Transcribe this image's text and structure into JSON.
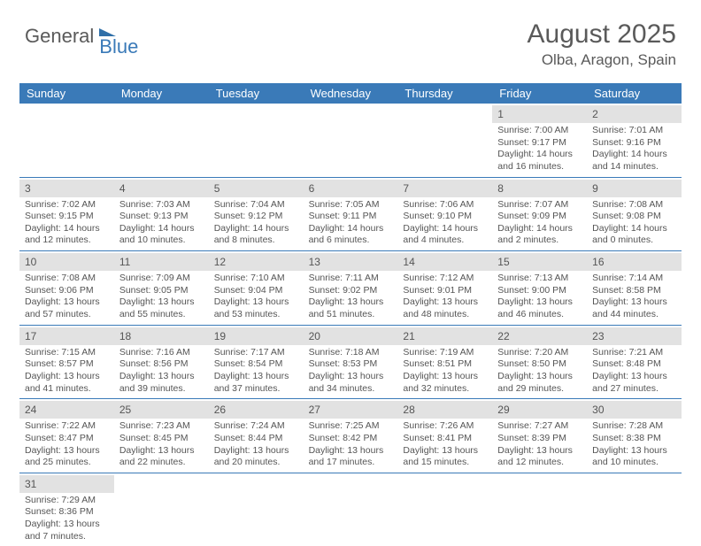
{
  "logo": {
    "part1": "General",
    "part2": "Blue"
  },
  "title": "August 2025",
  "location": "Olba, Aragon, Spain",
  "colors": {
    "header_bg": "#3a7ab8",
    "daynum_bg": "#e2e2e2",
    "text": "#555555",
    "week_border": "#3a7ab8"
  },
  "dayNames": [
    "Sunday",
    "Monday",
    "Tuesday",
    "Wednesday",
    "Thursday",
    "Friday",
    "Saturday"
  ],
  "weeks": [
    [
      null,
      null,
      null,
      null,
      null,
      {
        "n": "1",
        "sr": "7:00 AM",
        "ss": "9:17 PM",
        "dl": "14 hours and 16 minutes."
      },
      {
        "n": "2",
        "sr": "7:01 AM",
        "ss": "9:16 PM",
        "dl": "14 hours and 14 minutes."
      }
    ],
    [
      {
        "n": "3",
        "sr": "7:02 AM",
        "ss": "9:15 PM",
        "dl": "14 hours and 12 minutes."
      },
      {
        "n": "4",
        "sr": "7:03 AM",
        "ss": "9:13 PM",
        "dl": "14 hours and 10 minutes."
      },
      {
        "n": "5",
        "sr": "7:04 AM",
        "ss": "9:12 PM",
        "dl": "14 hours and 8 minutes."
      },
      {
        "n": "6",
        "sr": "7:05 AM",
        "ss": "9:11 PM",
        "dl": "14 hours and 6 minutes."
      },
      {
        "n": "7",
        "sr": "7:06 AM",
        "ss": "9:10 PM",
        "dl": "14 hours and 4 minutes."
      },
      {
        "n": "8",
        "sr": "7:07 AM",
        "ss": "9:09 PM",
        "dl": "14 hours and 2 minutes."
      },
      {
        "n": "9",
        "sr": "7:08 AM",
        "ss": "9:08 PM",
        "dl": "14 hours and 0 minutes."
      }
    ],
    [
      {
        "n": "10",
        "sr": "7:08 AM",
        "ss": "9:06 PM",
        "dl": "13 hours and 57 minutes."
      },
      {
        "n": "11",
        "sr": "7:09 AM",
        "ss": "9:05 PM",
        "dl": "13 hours and 55 minutes."
      },
      {
        "n": "12",
        "sr": "7:10 AM",
        "ss": "9:04 PM",
        "dl": "13 hours and 53 minutes."
      },
      {
        "n": "13",
        "sr": "7:11 AM",
        "ss": "9:02 PM",
        "dl": "13 hours and 51 minutes."
      },
      {
        "n": "14",
        "sr": "7:12 AM",
        "ss": "9:01 PM",
        "dl": "13 hours and 48 minutes."
      },
      {
        "n": "15",
        "sr": "7:13 AM",
        "ss": "9:00 PM",
        "dl": "13 hours and 46 minutes."
      },
      {
        "n": "16",
        "sr": "7:14 AM",
        "ss": "8:58 PM",
        "dl": "13 hours and 44 minutes."
      }
    ],
    [
      {
        "n": "17",
        "sr": "7:15 AM",
        "ss": "8:57 PM",
        "dl": "13 hours and 41 minutes."
      },
      {
        "n": "18",
        "sr": "7:16 AM",
        "ss": "8:56 PM",
        "dl": "13 hours and 39 minutes."
      },
      {
        "n": "19",
        "sr": "7:17 AM",
        "ss": "8:54 PM",
        "dl": "13 hours and 37 minutes."
      },
      {
        "n": "20",
        "sr": "7:18 AM",
        "ss": "8:53 PM",
        "dl": "13 hours and 34 minutes."
      },
      {
        "n": "21",
        "sr": "7:19 AM",
        "ss": "8:51 PM",
        "dl": "13 hours and 32 minutes."
      },
      {
        "n": "22",
        "sr": "7:20 AM",
        "ss": "8:50 PM",
        "dl": "13 hours and 29 minutes."
      },
      {
        "n": "23",
        "sr": "7:21 AM",
        "ss": "8:48 PM",
        "dl": "13 hours and 27 minutes."
      }
    ],
    [
      {
        "n": "24",
        "sr": "7:22 AM",
        "ss": "8:47 PM",
        "dl": "13 hours and 25 minutes."
      },
      {
        "n": "25",
        "sr": "7:23 AM",
        "ss": "8:45 PM",
        "dl": "13 hours and 22 minutes."
      },
      {
        "n": "26",
        "sr": "7:24 AM",
        "ss": "8:44 PM",
        "dl": "13 hours and 20 minutes."
      },
      {
        "n": "27",
        "sr": "7:25 AM",
        "ss": "8:42 PM",
        "dl": "13 hours and 17 minutes."
      },
      {
        "n": "28",
        "sr": "7:26 AM",
        "ss": "8:41 PM",
        "dl": "13 hours and 15 minutes."
      },
      {
        "n": "29",
        "sr": "7:27 AM",
        "ss": "8:39 PM",
        "dl": "13 hours and 12 minutes."
      },
      {
        "n": "30",
        "sr": "7:28 AM",
        "ss": "8:38 PM",
        "dl": "13 hours and 10 minutes."
      }
    ],
    [
      {
        "n": "31",
        "sr": "7:29 AM",
        "ss": "8:36 PM",
        "dl": "13 hours and 7 minutes."
      },
      null,
      null,
      null,
      null,
      null,
      null
    ]
  ]
}
